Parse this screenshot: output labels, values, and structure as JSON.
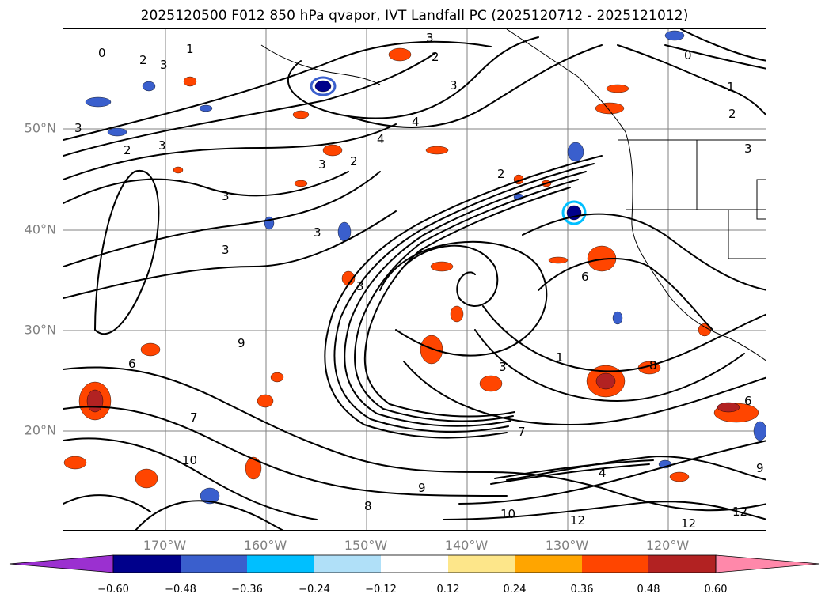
{
  "title": "2025120500 F012 850 hPa qvapor, IVT Landfall PC (2025120712 - 2025121012)",
  "map": {
    "lat_labels": [
      "50°N",
      "40°N",
      "30°N",
      "20°N"
    ],
    "lon_labels": [
      "170°W",
      "160°W",
      "150°W",
      "140°W",
      "130°W",
      "120°W"
    ],
    "contour_labels": [
      "0",
      "2",
      "3",
      "3",
      "2",
      "1",
      "2",
      "3",
      "4",
      "3",
      "2",
      "4",
      "3",
      "3",
      "3",
      "2",
      "3",
      "3",
      "6",
      "6",
      "7",
      "3",
      "9",
      "3",
      "9",
      "8",
      "10",
      "10",
      "12",
      "12",
      "12",
      "0",
      "1",
      "2",
      "3",
      "6",
      "1",
      "8",
      "9",
      "4",
      "7"
    ],
    "coastline_color": "#000000",
    "gridline_color": "#808080"
  },
  "colorbar": {
    "ticks": [
      "−0.60",
      "−0.48",
      "−0.36",
      "−0.24",
      "−0.12",
      "0.12",
      "0.24",
      "0.36",
      "0.48",
      "0.60"
    ],
    "colors": [
      "#9b30d0",
      "#00008b",
      "#3a5fcd",
      "#00bfff",
      "#b0e0f8",
      "#ffffff",
      "#fde68a",
      "#ffa500",
      "#ff4500",
      "#b22222",
      "#ff88aa"
    ]
  }
}
